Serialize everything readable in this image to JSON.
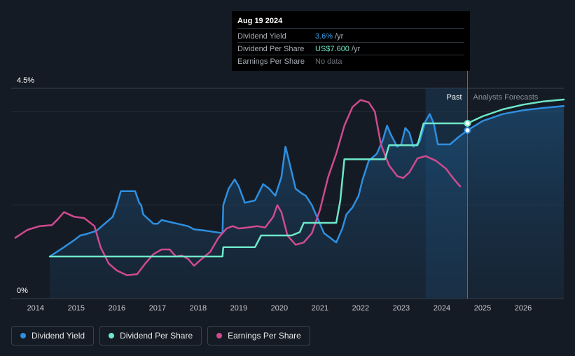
{
  "chart_data": {
    "type": "line",
    "title": "",
    "y_axis": {
      "top_label": "4.5%",
      "bottom_label": "0%",
      "range": [
        0,
        4.5
      ]
    },
    "x_axis": {
      "range": [
        2013.4,
        2027.0
      ],
      "ticks": [
        "2014",
        "2015",
        "2016",
        "2017",
        "2018",
        "2019",
        "2020",
        "2021",
        "2022",
        "2023",
        "2024",
        "2025",
        "2026"
      ]
    },
    "past_label": "Past",
    "forecast_label": "Analysts Forecasts",
    "forecast_start": 2023.6,
    "today": 2024.63,
    "series": [
      {
        "name": "Dividend Yield",
        "color": "#2e8fe0",
        "points": [
          [
            2014.35,
            0.9
          ],
          [
            2014.7,
            1.1
          ],
          [
            2014.95,
            1.25
          ],
          [
            2015.1,
            1.35
          ],
          [
            2015.25,
            1.38
          ],
          [
            2015.5,
            1.45
          ],
          [
            2015.7,
            1.6
          ],
          [
            2015.9,
            1.75
          ],
          [
            2016.0,
            2.0
          ],
          [
            2016.1,
            2.3
          ],
          [
            2016.45,
            2.3
          ],
          [
            2016.55,
            2.05
          ],
          [
            2016.6,
            2.0
          ],
          [
            2016.65,
            1.8
          ],
          [
            2016.9,
            1.6
          ],
          [
            2017.0,
            1.6
          ],
          [
            2017.1,
            1.68
          ],
          [
            2017.25,
            1.65
          ],
          [
            2017.6,
            1.58
          ],
          [
            2017.75,
            1.55
          ],
          [
            2017.9,
            1.48
          ],
          [
            2018.2,
            1.45
          ],
          [
            2018.6,
            1.4
          ],
          [
            2018.62,
            2.0
          ],
          [
            2018.75,
            2.35
          ],
          [
            2018.9,
            2.55
          ],
          [
            2019.0,
            2.4
          ],
          [
            2019.15,
            2.05
          ],
          [
            2019.4,
            2.1
          ],
          [
            2019.6,
            2.45
          ],
          [
            2019.75,
            2.35
          ],
          [
            2019.9,
            2.2
          ],
          [
            2020.05,
            2.6
          ],
          [
            2020.15,
            3.25
          ],
          [
            2020.25,
            2.9
          ],
          [
            2020.4,
            2.35
          ],
          [
            2020.55,
            2.25
          ],
          [
            2020.65,
            2.2
          ],
          [
            2020.8,
            2.0
          ],
          [
            2020.95,
            1.7
          ],
          [
            2021.1,
            1.4
          ],
          [
            2021.25,
            1.3
          ],
          [
            2021.4,
            1.2
          ],
          [
            2021.55,
            1.5
          ],
          [
            2021.65,
            1.8
          ],
          [
            2021.8,
            1.95
          ],
          [
            2021.95,
            2.2
          ],
          [
            2022.05,
            2.55
          ],
          [
            2022.2,
            2.95
          ],
          [
            2022.4,
            3.1
          ],
          [
            2022.55,
            3.4
          ],
          [
            2022.65,
            3.7
          ],
          [
            2022.75,
            3.5
          ],
          [
            2022.9,
            3.25
          ],
          [
            2023.0,
            3.3
          ],
          [
            2023.1,
            3.65
          ],
          [
            2023.2,
            3.55
          ],
          [
            2023.3,
            3.25
          ],
          [
            2023.45,
            3.35
          ],
          [
            2023.6,
            3.8
          ],
          [
            2023.7,
            3.95
          ],
          [
            2023.8,
            3.75
          ],
          [
            2023.9,
            3.3
          ],
          [
            2024.2,
            3.3
          ],
          [
            2024.4,
            3.45
          ],
          [
            2024.63,
            3.6
          ],
          [
            2025.0,
            3.8
          ],
          [
            2025.5,
            3.95
          ],
          [
            2026.0,
            4.03
          ],
          [
            2026.5,
            4.08
          ],
          [
            2027.0,
            4.12
          ]
        ]
      },
      {
        "name": "Dividend Per Share",
        "color": "#6ee8c9",
        "points": [
          [
            2014.35,
            0.9
          ],
          [
            2016.0,
            0.9
          ],
          [
            2017.0,
            0.9
          ],
          [
            2018.6,
            0.9
          ],
          [
            2018.62,
            1.1
          ],
          [
            2019.4,
            1.1
          ],
          [
            2019.55,
            1.35
          ],
          [
            2020.3,
            1.35
          ],
          [
            2020.5,
            1.42
          ],
          [
            2020.6,
            1.62
          ],
          [
            2021.4,
            1.62
          ],
          [
            2021.5,
            2.1
          ],
          [
            2021.6,
            2.98
          ],
          [
            2022.6,
            2.98
          ],
          [
            2022.7,
            3.28
          ],
          [
            2023.4,
            3.28
          ],
          [
            2023.55,
            3.75
          ],
          [
            2024.63,
            3.75
          ],
          [
            2025.0,
            3.9
          ],
          [
            2025.5,
            4.05
          ],
          [
            2026.0,
            4.15
          ],
          [
            2026.5,
            4.22
          ],
          [
            2027.0,
            4.26
          ]
        ]
      },
      {
        "name": "Earnings Per Share",
        "color": "#cf4a8f",
        "points": [
          [
            2013.5,
            1.3
          ],
          [
            2013.8,
            1.47
          ],
          [
            2014.1,
            1.55
          ],
          [
            2014.4,
            1.57
          ],
          [
            2014.55,
            1.7
          ],
          [
            2014.7,
            1.85
          ],
          [
            2014.95,
            1.75
          ],
          [
            2015.2,
            1.72
          ],
          [
            2015.45,
            1.55
          ],
          [
            2015.6,
            1.1
          ],
          [
            2015.8,
            0.75
          ],
          [
            2016.0,
            0.6
          ],
          [
            2016.25,
            0.5
          ],
          [
            2016.5,
            0.52
          ],
          [
            2016.7,
            0.75
          ],
          [
            2016.9,
            0.95
          ],
          [
            2017.1,
            1.05
          ],
          [
            2017.3,
            1.05
          ],
          [
            2017.45,
            0.9
          ],
          [
            2017.6,
            0.92
          ],
          [
            2017.75,
            0.85
          ],
          [
            2017.9,
            0.7
          ],
          [
            2018.05,
            0.82
          ],
          [
            2018.3,
            1.0
          ],
          [
            2018.5,
            1.3
          ],
          [
            2018.7,
            1.5
          ],
          [
            2018.85,
            1.55
          ],
          [
            2019.0,
            1.5
          ],
          [
            2019.2,
            1.52
          ],
          [
            2019.45,
            1.55
          ],
          [
            2019.65,
            1.52
          ],
          [
            2019.85,
            1.75
          ],
          [
            2019.95,
            2.0
          ],
          [
            2020.05,
            1.85
          ],
          [
            2020.2,
            1.35
          ],
          [
            2020.4,
            1.15
          ],
          [
            2020.6,
            1.2
          ],
          [
            2020.8,
            1.4
          ],
          [
            2021.0,
            1.9
          ],
          [
            2021.2,
            2.6
          ],
          [
            2021.4,
            3.1
          ],
          [
            2021.6,
            3.7
          ],
          [
            2021.8,
            4.1
          ],
          [
            2022.0,
            4.25
          ],
          [
            2022.2,
            4.2
          ],
          [
            2022.35,
            4.0
          ],
          [
            2022.5,
            3.3
          ],
          [
            2022.7,
            2.85
          ],
          [
            2022.9,
            2.62
          ],
          [
            2023.05,
            2.58
          ],
          [
            2023.2,
            2.7
          ],
          [
            2023.4,
            3.0
          ],
          [
            2023.6,
            3.05
          ],
          [
            2023.85,
            2.95
          ],
          [
            2024.1,
            2.78
          ],
          [
            2024.3,
            2.55
          ],
          [
            2024.45,
            2.4
          ]
        ]
      }
    ],
    "tooltip": {
      "date": "Aug 19 2024",
      "rows": [
        {
          "label": "Dividend Yield",
          "value": "3.6%",
          "unit": "/yr"
        },
        {
          "label": "Dividend Per Share",
          "value": "US$7.600",
          "unit": "/yr"
        },
        {
          "label": "Earnings Per Share",
          "value": "No data",
          "unit": ""
        }
      ]
    }
  },
  "legend": [
    {
      "label": "Dividend Yield",
      "color": "#2e8fe0"
    },
    {
      "label": "Dividend Per Share",
      "color": "#6ee8c9"
    },
    {
      "label": "Earnings Per Share",
      "color": "#cf4a8f"
    }
  ]
}
